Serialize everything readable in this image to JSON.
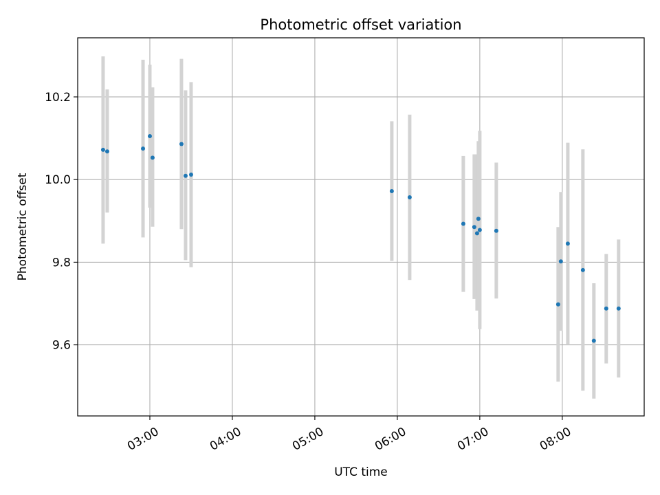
{
  "chart_data": {
    "type": "scatter",
    "title": "Photometric offset variation",
    "xlabel": "UTC time",
    "ylabel": "Photometric offset",
    "x_unit": "hours UTC",
    "xlim": [
      2.125,
      8.993
    ],
    "ylim": [
      9.428,
      10.343
    ],
    "grid": true,
    "x_ticks": [
      {
        "value": 3,
        "label": "03:00"
      },
      {
        "value": 4,
        "label": "04:00"
      },
      {
        "value": 5,
        "label": "05:00"
      },
      {
        "value": 6,
        "label": "06:00"
      },
      {
        "value": 7,
        "label": "07:00"
      },
      {
        "value": 8,
        "label": "08:00"
      }
    ],
    "y_ticks": [
      {
        "value": 9.6,
        "label": "9.6"
      },
      {
        "value": 9.8,
        "label": "9.8"
      },
      {
        "value": 10.0,
        "label": "10.0"
      },
      {
        "value": 10.2,
        "label": "10.2"
      }
    ],
    "marker_color": "#1f77b4",
    "errorbar_color": "#d3d3d3",
    "points": [
      {
        "x": 2.433,
        "y": 10.072,
        "yerr_low": 9.845,
        "yerr_high": 10.298
      },
      {
        "x": 2.483,
        "y": 10.068,
        "yerr_low": 9.92,
        "yerr_high": 10.218
      },
      {
        "x": 2.917,
        "y": 10.075,
        "yerr_low": 9.86,
        "yerr_high": 10.29
      },
      {
        "x": 3.0,
        "y": 10.105,
        "yerr_low": 9.932,
        "yerr_high": 10.278
      },
      {
        "x": 3.033,
        "y": 10.053,
        "yerr_low": 9.886,
        "yerr_high": 10.223
      },
      {
        "x": 3.383,
        "y": 10.086,
        "yerr_low": 9.88,
        "yerr_high": 10.292
      },
      {
        "x": 3.433,
        "y": 10.009,
        "yerr_low": 9.805,
        "yerr_high": 10.216
      },
      {
        "x": 3.5,
        "y": 10.012,
        "yerr_low": 9.788,
        "yerr_high": 10.236
      },
      {
        "x": 5.933,
        "y": 9.972,
        "yerr_low": 9.803,
        "yerr_high": 10.141
      },
      {
        "x": 6.15,
        "y": 9.957,
        "yerr_low": 9.757,
        "yerr_high": 10.157
      },
      {
        "x": 6.8,
        "y": 9.893,
        "yerr_low": 9.728,
        "yerr_high": 10.057
      },
      {
        "x": 6.933,
        "y": 9.885,
        "yerr_low": 9.711,
        "yerr_high": 10.061
      },
      {
        "x": 6.967,
        "y": 9.87,
        "yerr_low": 9.683,
        "yerr_high": 10.061
      },
      {
        "x": 6.983,
        "y": 9.905,
        "yerr_low": 9.717,
        "yerr_high": 10.093
      },
      {
        "x": 7.0,
        "y": 9.878,
        "yerr_low": 9.638,
        "yerr_high": 10.118
      },
      {
        "x": 7.2,
        "y": 9.876,
        "yerr_low": 9.712,
        "yerr_high": 10.041
      },
      {
        "x": 7.95,
        "y": 9.698,
        "yerr_low": 9.511,
        "yerr_high": 9.885
      },
      {
        "x": 7.983,
        "y": 9.802,
        "yerr_low": 9.634,
        "yerr_high": 9.97
      },
      {
        "x": 8.067,
        "y": 9.845,
        "yerr_low": 9.6,
        "yerr_high": 10.089
      },
      {
        "x": 8.25,
        "y": 9.781,
        "yerr_low": 9.489,
        "yerr_high": 10.073
      },
      {
        "x": 8.383,
        "y": 9.61,
        "yerr_low": 9.47,
        "yerr_high": 9.749
      },
      {
        "x": 8.533,
        "y": 9.688,
        "yerr_low": 9.555,
        "yerr_high": 9.82
      },
      {
        "x": 8.683,
        "y": 9.688,
        "yerr_low": 9.521,
        "yerr_high": 9.855
      }
    ]
  }
}
